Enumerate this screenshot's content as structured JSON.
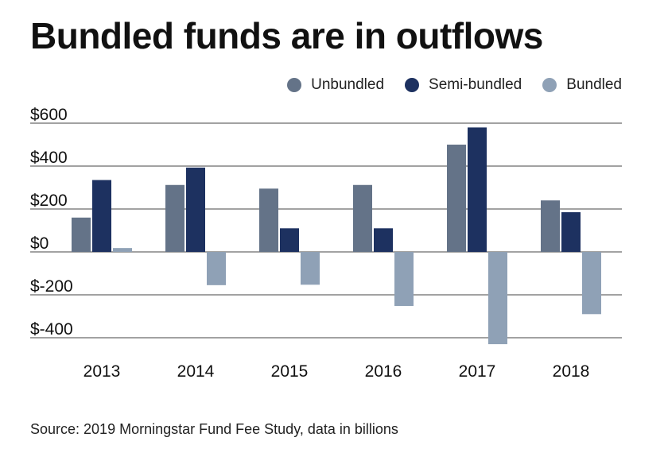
{
  "title": "Bundled funds are in outflows",
  "source": "Source: 2019 Morningstar Fund Fee Study, data in billions",
  "colors": {
    "gridline": "#444444",
    "text": "#111111"
  },
  "chart_data": {
    "type": "bar",
    "categories": [
      "2013",
      "2014",
      "2015",
      "2016",
      "2017",
      "2018"
    ],
    "series": [
      {
        "name": "Unbundled",
        "color": "#647388",
        "values": [
          160,
          312,
          295,
          312,
          500,
          240
        ]
      },
      {
        "name": "Semi-bundled",
        "color": "#1d3160",
        "values": [
          335,
          393,
          110,
          110,
          580,
          185
        ]
      },
      {
        "name": "Bundled",
        "color": "#8fa1b6",
        "values": [
          18,
          -155,
          -153,
          -252,
          -430,
          -290
        ]
      }
    ],
    "yticks": [
      600,
      400,
      200,
      0,
      -200,
      -400
    ],
    "ytick_labels": [
      "$600",
      "$400",
      "$200",
      "$0",
      "$-200",
      "$-400"
    ],
    "ylim": [
      -430,
      600
    ],
    "legend": "top-right",
    "grid": true
  }
}
